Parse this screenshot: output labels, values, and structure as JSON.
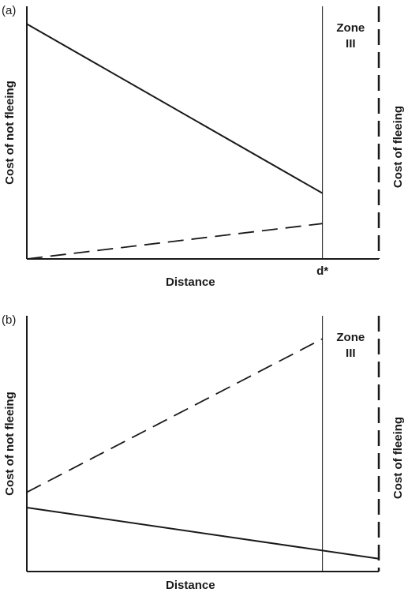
{
  "chart_data": [
    {
      "type": "line",
      "panel_label": "(a)",
      "xlabel": "Distance",
      "ylabel": "Cost of not fleeing",
      "ylabel_right": "Cost of fleeing",
      "zone_label": [
        "Zone",
        "III"
      ],
      "marker_label": "d*",
      "xlim": [
        0,
        100
      ],
      "ylim": [
        0,
        100
      ],
      "marker_x": 84,
      "series": [
        {
          "style": "solid",
          "x": [
            0,
            84
          ],
          "y": [
            93,
            26
          ]
        },
        {
          "style": "dashed",
          "x": [
            0,
            84
          ],
          "y": [
            0,
            14
          ]
        }
      ]
    },
    {
      "type": "line",
      "panel_label": "(b)",
      "xlabel": "Distance",
      "ylabel": "Cost of not fleeing",
      "ylabel_right": "Cost of fleeing",
      "zone_label": [
        "Zone",
        "III"
      ],
      "xlim": [
        0,
        100
      ],
      "ylim": [
        0,
        100
      ],
      "marker_x": 84,
      "series": [
        {
          "style": "dashed",
          "x": [
            0,
            84
          ],
          "y": [
            31,
            91
          ]
        },
        {
          "style": "solid",
          "x": [
            0,
            100
          ],
          "y": [
            25,
            5
          ]
        }
      ]
    }
  ]
}
